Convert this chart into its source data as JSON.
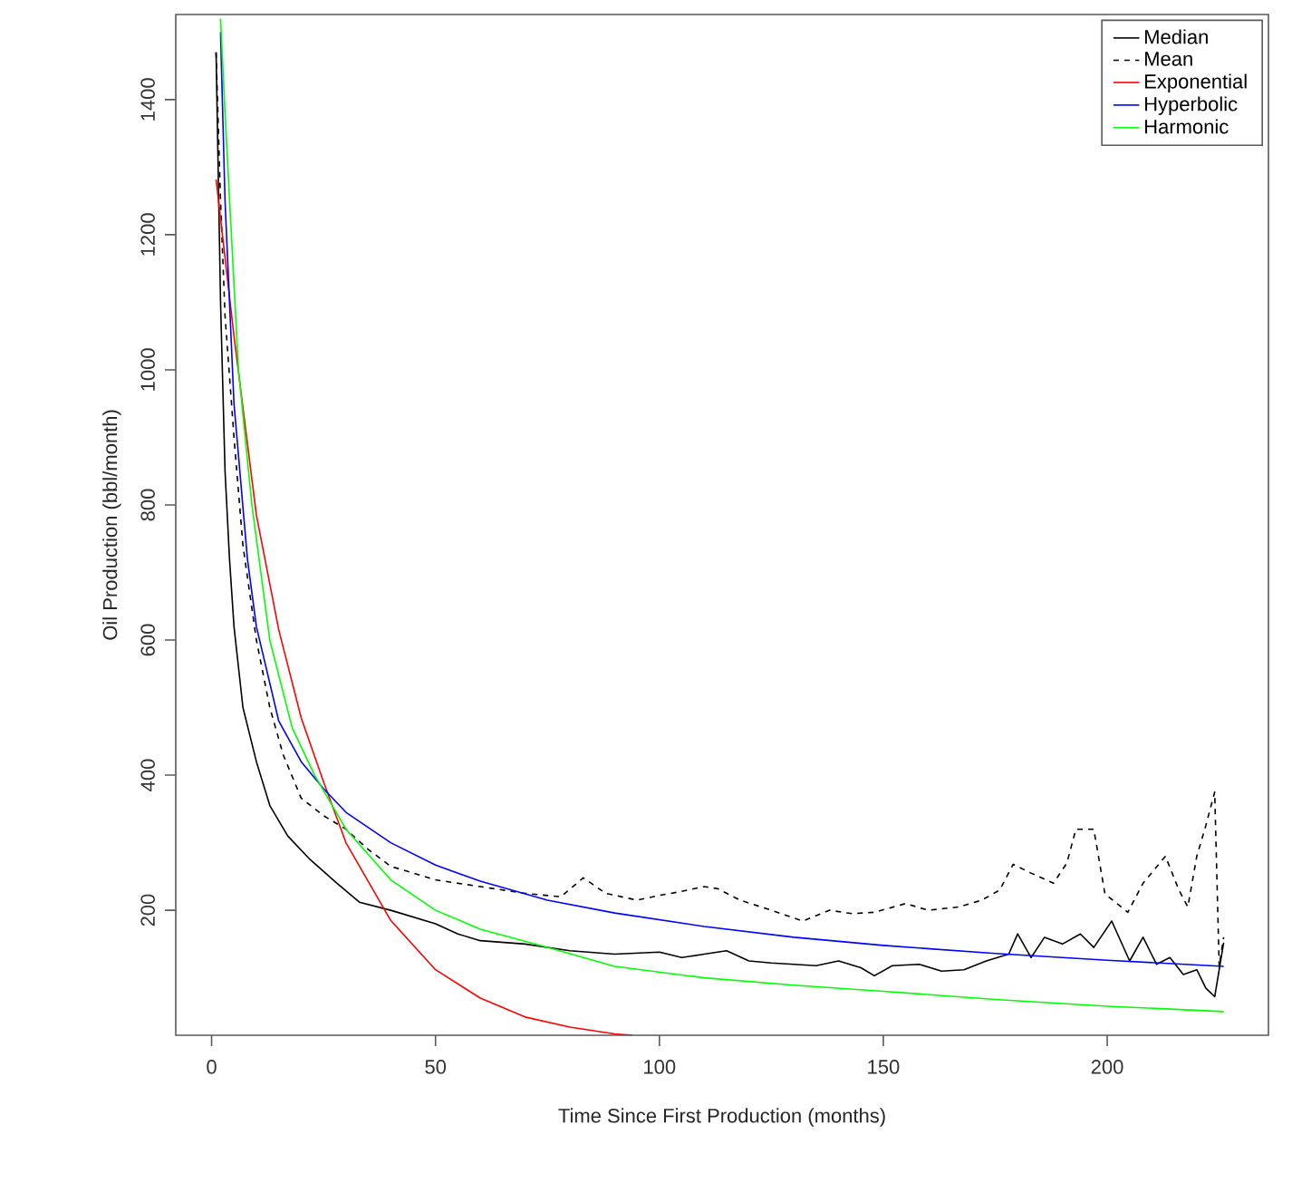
{
  "chart_data": {
    "type": "line",
    "xlabel": "Time Since First Production (months)",
    "ylabel": "Oil Production (bbl/month)",
    "xlim": [
      -8,
      236
    ],
    "ylim": [
      15,
      1526
    ],
    "xticks": [
      0,
      50,
      100,
      150,
      200
    ],
    "yticks": [
      200,
      400,
      600,
      800,
      1000,
      1200,
      1400
    ],
    "legend": "top right",
    "series": [
      {
        "name": "Median",
        "color": "#000000",
        "line_style": "solid",
        "x": [
          1,
          2,
          3,
          4,
          5,
          7,
          10,
          13,
          17,
          22,
          28,
          33,
          40,
          50,
          55,
          60,
          70,
          80,
          90,
          100,
          105,
          110,
          115,
          120,
          125,
          130,
          135,
          140,
          145,
          148,
          152,
          158,
          163,
          168,
          173,
          178,
          180,
          183,
          186,
          190,
          194,
          197,
          201,
          205,
          208,
          211,
          214,
          217,
          220,
          222,
          224,
          226
        ],
        "values": [
          1470,
          1100,
          850,
          720,
          620,
          500,
          420,
          355,
          310,
          275,
          240,
          212,
          200,
          180,
          165,
          155,
          150,
          140,
          135,
          138,
          130,
          135,
          140,
          125,
          122,
          120,
          118,
          125,
          115,
          103,
          118,
          120,
          110,
          112,
          125,
          135,
          165,
          130,
          160,
          150,
          165,
          145,
          184,
          125,
          160,
          120,
          130,
          105,
          112,
          85,
          72,
          152
        ]
      },
      {
        "name": "Mean",
        "color": "#000000",
        "line_style": "dashed",
        "x": [
          1,
          2,
          3,
          5,
          7,
          10,
          13,
          16,
          20,
          25,
          30,
          35,
          40,
          50,
          60,
          70,
          78,
          83,
          88,
          95,
          100,
          105,
          110,
          113,
          118,
          125,
          132,
          138,
          143,
          148,
          155,
          160,
          167,
          172,
          176,
          179,
          183,
          188,
          191,
          193,
          197,
          199.5,
          204.6,
          208,
          213,
          216,
          218,
          220,
          222,
          224,
          225,
          226
        ],
        "values": [
          1470,
          1250,
          1080,
          900,
          740,
          600,
          500,
          430,
          366,
          340,
          320,
          290,
          265,
          245,
          235,
          225,
          220,
          248,
          225,
          215,
          222,
          228,
          235,
          232,
          215,
          200,
          184,
          200,
          195,
          197,
          210,
          200,
          205,
          215,
          230,
          268,
          255,
          240,
          270,
          320,
          320,
          224,
          197,
          240,
          280,
          230,
          205,
          280,
          325,
          375,
          117,
          160
        ]
      },
      {
        "name": "Exponential",
        "color": "#ff0000",
        "line_style": "solid",
        "x": [
          1,
          5,
          10,
          15,
          20,
          25,
          30,
          40,
          50,
          60,
          70,
          80,
          90,
          94
        ],
        "values": [
          1282,
          1050,
          785,
          615,
          485,
          390,
          300,
          185,
          112,
          70,
          42,
          27,
          17,
          15
        ]
      },
      {
        "name": "Hyperbolic",
        "color": "#0000ff",
        "line_style": "solid",
        "x": [
          2,
          3,
          5,
          8,
          10,
          15,
          20,
          25,
          30,
          40,
          50,
          60,
          75,
          90,
          110,
          130,
          150,
          175,
          200,
          226
        ],
        "values": [
          1500,
          1250,
          950,
          720,
          620,
          480,
          420,
          380,
          345,
          300,
          267,
          243,
          215,
          196,
          176,
          160,
          148,
          136,
          126,
          117
        ]
      },
      {
        "name": "Harmonic",
        "color": "#00ff00",
        "line_style": "solid",
        "x": [
          2,
          3,
          6,
          9,
          13,
          18,
          23,
          30,
          40,
          50,
          60,
          75,
          90,
          110,
          130,
          150,
          175,
          200,
          226
        ],
        "values": [
          1520,
          1380,
          1000,
          800,
          600,
          470,
          400,
          320,
          245,
          200,
          172,
          145,
          117,
          100,
          89,
          80,
          68,
          58,
          50
        ]
      }
    ]
  }
}
